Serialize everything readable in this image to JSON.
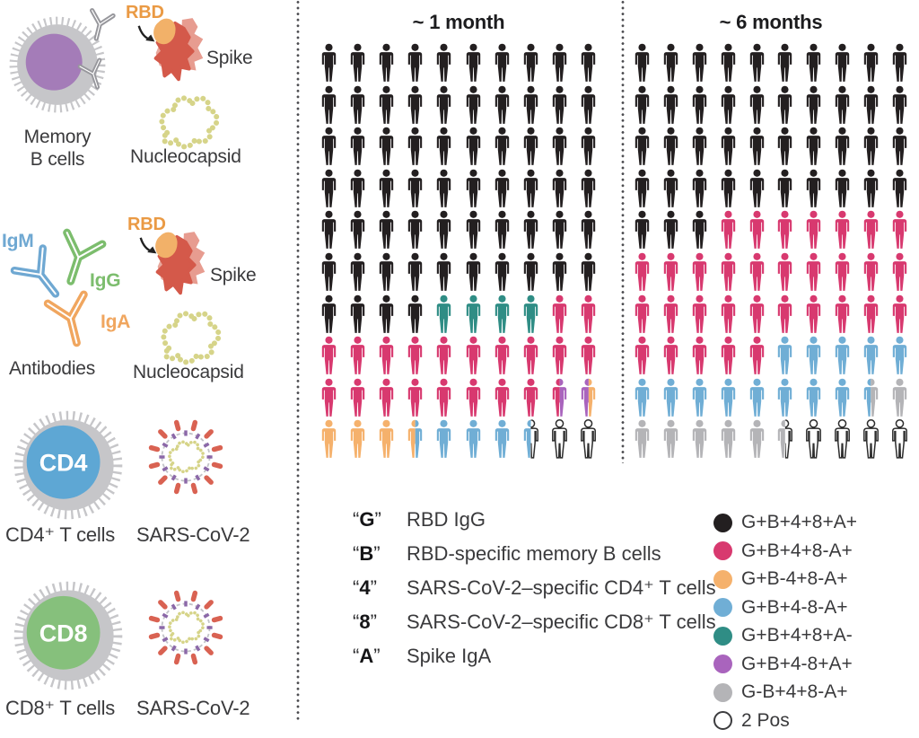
{
  "left_panel": {
    "memory_b": {
      "label_line1": "Memory",
      "label_line2": "B cells"
    },
    "antigen1": {
      "rbd": "RBD",
      "spike": "Spike",
      "nucleocapsid": "Nucleocapsid"
    },
    "antibodies": {
      "igm": "IgM",
      "igg": "IgG",
      "iga": "IgA",
      "label": "Antibodies"
    },
    "antigen2": {
      "rbd": "RBD",
      "spike": "Spike",
      "nucleocapsid": "Nucleocapsid"
    },
    "cd4": {
      "badge": "CD4",
      "label": "CD4⁺ T cells",
      "virus_label": "SARS-CoV-2"
    },
    "cd8": {
      "badge": "CD8",
      "label": "CD8⁺ T cells",
      "virus_label": "SARS-CoV-2"
    }
  },
  "colors": {
    "black": "#231f20",
    "pink": "#d8396f",
    "orange": "#f5b16c",
    "blue": "#70aed5",
    "teal": "#2f8d85",
    "purple": "#a964bd",
    "gray": "#b4b4b7",
    "white": "#ffffff",
    "outline": "#2d2d2d"
  },
  "chart_data": [
    {
      "type": "pictogram-waffle",
      "title": "~ 1 month",
      "grid": "10x10 person icons, 1 icon = 1 subject of 100",
      "counts": {
        "G+B+4+8+A+": 64,
        "G+B+4+8+A-": 4,
        "G+B+4+8-A+": 20.5,
        "G+B+4-8+A+": 1,
        "G+B-4+8-A+": 4,
        "G+B+4-8-A+": 4,
        "2 Pos": 2.5
      },
      "rows": [
        [
          "black",
          "black",
          "black",
          "black",
          "black",
          "black",
          "black",
          "black",
          "black",
          "black"
        ],
        [
          "black",
          "black",
          "black",
          "black",
          "black",
          "black",
          "black",
          "black",
          "black",
          "black"
        ],
        [
          "black",
          "black",
          "black",
          "black",
          "black",
          "black",
          "black",
          "black",
          "black",
          "black"
        ],
        [
          "black",
          "black",
          "black",
          "black",
          "black",
          "black",
          "black",
          "black",
          "black",
          "black"
        ],
        [
          "black",
          "black",
          "black",
          "black",
          "black",
          "black",
          "black",
          "black",
          "black",
          "black"
        ],
        [
          "black",
          "black",
          "black",
          "black",
          "black",
          "black",
          "black",
          "black",
          "black",
          "black"
        ],
        [
          "black",
          "black",
          "black",
          "black",
          "teal",
          "teal",
          "teal",
          "teal",
          "pink",
          "pink"
        ],
        [
          "pink",
          "pink",
          "pink",
          "pink",
          "pink",
          "pink",
          "pink",
          "pink",
          "pink",
          "pink"
        ],
        [
          "pink",
          "pink",
          "pink",
          "pink",
          "pink",
          "pink",
          "pink",
          "pink",
          "pink|purple",
          "purple|orange"
        ],
        [
          "orange",
          "orange",
          "orange",
          "orange|blue",
          "blue",
          "blue",
          "blue",
          "blue|white",
          "white",
          "white"
        ]
      ]
    },
    {
      "type": "pictogram-waffle",
      "title": "~ 6 months",
      "grid": "10x10 person icons, 1 icon = 1 subject of 100",
      "counts": {
        "G+B+4+8+A+": 43,
        "G+B+4+8-A+": 32,
        "G+B+4-8-A+": 13.5,
        "G-B+4+8-A+": 7,
        "2 Pos": 4.5
      },
      "rows": [
        [
          "black",
          "black",
          "black",
          "black",
          "black",
          "black",
          "black",
          "black",
          "black",
          "black"
        ],
        [
          "black",
          "black",
          "black",
          "black",
          "black",
          "black",
          "black",
          "black",
          "black",
          "black"
        ],
        [
          "black",
          "black",
          "black",
          "black",
          "black",
          "black",
          "black",
          "black",
          "black",
          "black"
        ],
        [
          "black",
          "black",
          "black",
          "black",
          "black",
          "black",
          "black",
          "black",
          "black",
          "black"
        ],
        [
          "black",
          "black",
          "black",
          "pink",
          "pink",
          "pink",
          "pink",
          "pink",
          "pink",
          "pink"
        ],
        [
          "pink",
          "pink",
          "pink",
          "pink",
          "pink",
          "pink",
          "pink",
          "pink",
          "pink",
          "pink"
        ],
        [
          "pink",
          "pink",
          "pink",
          "pink",
          "pink",
          "pink",
          "pink",
          "pink",
          "pink",
          "pink"
        ],
        [
          "pink",
          "pink",
          "pink",
          "pink",
          "pink",
          "blue",
          "blue",
          "blue",
          "blue",
          "blue"
        ],
        [
          "blue",
          "blue",
          "blue",
          "blue",
          "blue",
          "blue",
          "blue",
          "blue",
          "blue|gray",
          "gray"
        ],
        [
          "gray",
          "gray",
          "gray",
          "gray",
          "gray",
          "gray|white",
          "white",
          "white",
          "white",
          "white"
        ]
      ]
    }
  ],
  "letter_legend": [
    {
      "letter": "G",
      "description": "RBD IgG"
    },
    {
      "letter": "B",
      "description": "RBD-specific memory B cells"
    },
    {
      "letter": "4",
      "description": "SARS-CoV-2–specific CD4⁺ T cells"
    },
    {
      "letter": "8",
      "description": "SARS-CoV-2–specific CD8⁺ T cells"
    },
    {
      "letter": "A",
      "description": "Spike IgA"
    }
  ],
  "color_legend": [
    {
      "color_key": "black",
      "label": "G+B+4+8+A+"
    },
    {
      "color_key": "pink",
      "label": "G+B+4+8-A+"
    },
    {
      "color_key": "orange",
      "label": "G+B-4+8-A+"
    },
    {
      "color_key": "blue",
      "label": "G+B+4-8-A+"
    },
    {
      "color_key": "teal",
      "label": "G+B+4+8+A-"
    },
    {
      "color_key": "purple",
      "label": "G+B+4-8+A+"
    },
    {
      "color_key": "gray",
      "label": "G-B+4+8-A+"
    },
    {
      "color_key": "white",
      "label": "2 Pos"
    }
  ]
}
